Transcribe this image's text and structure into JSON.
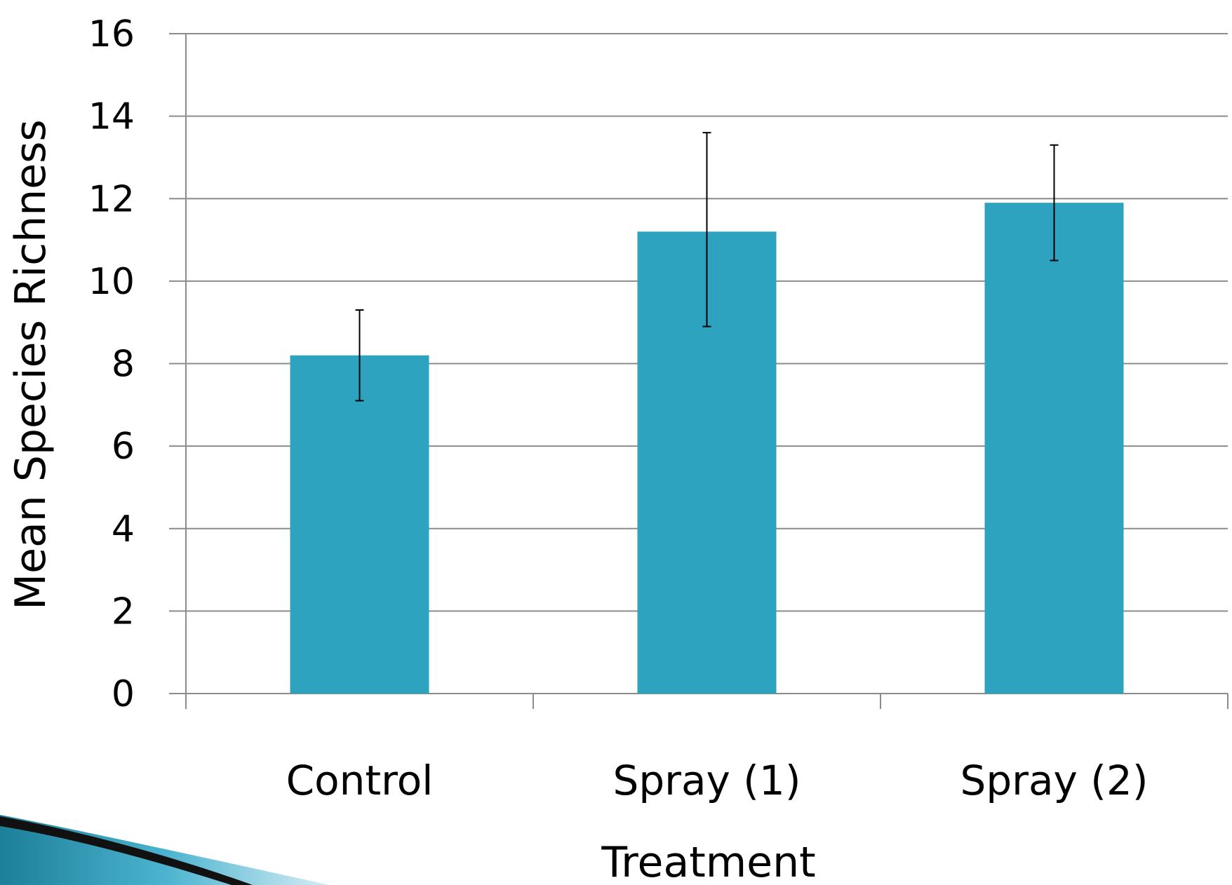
{
  "chart_data": {
    "type": "bar",
    "title": "",
    "xlabel": "Treatment",
    "ylabel": "Mean Species Richness",
    "categories": [
      "Control",
      "Spray (1)",
      "Spray (2)"
    ],
    "values": [
      8.2,
      11.2,
      11.9
    ],
    "error_low": [
      7.1,
      8.9,
      10.5
    ],
    "error_high": [
      9.3,
      13.6,
      13.3
    ],
    "ylim": [
      0,
      16
    ],
    "yticks": [
      0,
      2,
      4,
      6,
      8,
      10,
      12,
      14,
      16
    ],
    "grid": true,
    "bar_color": "#2ea3bf",
    "legend": "none"
  }
}
